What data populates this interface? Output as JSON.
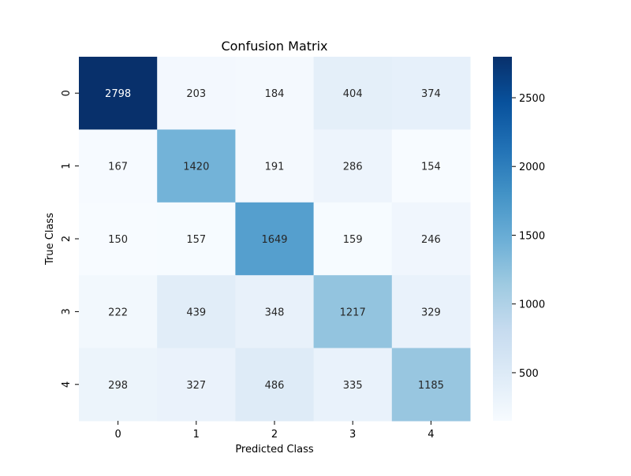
{
  "chart_data": {
    "type": "heatmap",
    "title": "Confusion Matrix",
    "xlabel": "Predicted Class",
    "ylabel": "True Class",
    "x_categories": [
      "0",
      "1",
      "2",
      "3",
      "4"
    ],
    "y_categories": [
      "0",
      "1",
      "2",
      "3",
      "4"
    ],
    "values": [
      [
        2798,
        203,
        184,
        404,
        374
      ],
      [
        167,
        1420,
        191,
        286,
        154
      ],
      [
        150,
        157,
        1649,
        159,
        246
      ],
      [
        222,
        439,
        348,
        1217,
        329
      ],
      [
        298,
        327,
        486,
        335,
        1185
      ]
    ],
    "annotations": true,
    "colormap": "Blues",
    "color_range": [
      150,
      2798
    ],
    "colorbar": {
      "ticks": [
        500,
        1000,
        1500,
        2000,
        2500
      ],
      "tick_labels": [
        "500",
        "1000",
        "1500",
        "2000",
        "2500"
      ]
    },
    "grid": false,
    "legend": "colorbar-right"
  }
}
